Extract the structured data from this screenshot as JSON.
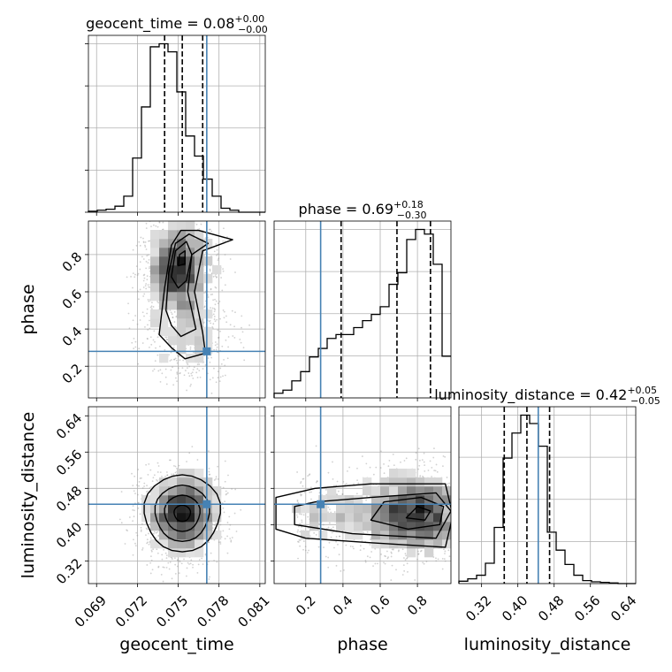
{
  "chart_data": {
    "type": "corner",
    "parameters": [
      "geocent_time",
      "phase",
      "luminosity_distance"
    ],
    "truths": {
      "geocent_time": 0.0771,
      "phase": 0.28,
      "luminosity_distance": 0.445
    },
    "axes": {
      "geocent_time": {
        "range": [
          0.0684,
          0.0814
        ],
        "ticks": [
          0.069,
          0.072,
          0.075,
          0.078,
          0.081
        ],
        "tick_labels": [
          "0.069",
          "0.072",
          "0.075",
          "0.078",
          "0.081"
        ]
      },
      "phase": {
        "range": [
          0.03,
          0.98
        ],
        "ticks": [
          0.2,
          0.4,
          0.6,
          0.8
        ],
        "tick_labels": [
          "0.2",
          "0.4",
          "0.6",
          "0.8"
        ]
      },
      "luminosity_distance": {
        "range": [
          0.27,
          0.66
        ],
        "ticks": [
          0.32,
          0.4,
          0.48,
          0.56,
          0.64
        ],
        "tick_labels": [
          "0.32",
          "0.40",
          "0.48",
          "0.56",
          "0.64"
        ]
      }
    },
    "titles": [
      {
        "param": "geocent_time",
        "main": "geocent_time = 0.08",
        "plus": "+0.00",
        "minus": "−0.00"
      },
      {
        "param": "phase",
        "main": "phase = 0.69",
        "plus": "+0.18",
        "minus": "−0.30"
      },
      {
        "param": "luminosity_distance",
        "main": "luminosity_distance = 0.42",
        "plus": "+0.05",
        "minus": "−0.05"
      }
    ],
    "quantiles": {
      "geocent_time": [
        0.074,
        0.0753,
        0.0768
      ],
      "phase": [
        0.39,
        0.69,
        0.87
      ],
      "luminosity_distance": [
        0.37,
        0.42,
        0.47
      ]
    },
    "histograms": {
      "geocent_time": {
        "edges_start": 0.0684,
        "bin_width": 0.00065,
        "counts": [
          1,
          2,
          3,
          6,
          16,
          54,
          105,
          165,
          168,
          160,
          120,
          76,
          56,
          33,
          16,
          4,
          2,
          0,
          0,
          0
        ]
      },
      "phase": {
        "edges_start": 0.03,
        "bin_width": 0.0475,
        "counts": [
          6,
          10,
          22,
          34,
          53,
          64,
          77,
          82,
          82,
          91,
          100,
          108,
          118,
          147,
          162,
          205,
          218,
          212,
          173,
          54
        ]
      },
      "luminosity_distance": {
        "edges_start": 0.27,
        "bin_width": 0.0195,
        "counts": [
          4,
          8,
          14,
          34,
          94,
          210,
          252,
          282,
          268,
          230,
          86,
          56,
          32,
          14,
          5,
          3,
          2,
          1,
          0,
          0
        ]
      }
    },
    "grid": true
  }
}
